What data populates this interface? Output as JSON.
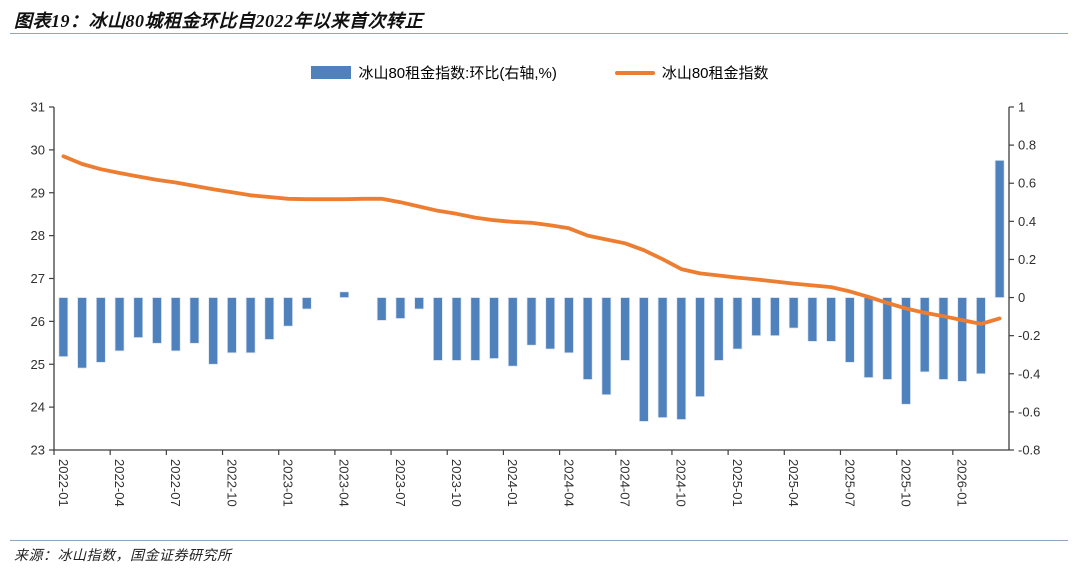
{
  "header": {
    "title": "图表19：冰山80城租金环比自2022年以来首次转正"
  },
  "legend": {
    "items": [
      {
        "label": "冰山80租金指数:环比(右轴,%)",
        "marker": "bar-swatch"
      },
      {
        "label": "冰山80租金指数",
        "marker": "line-swatch"
      }
    ]
  },
  "footer": {
    "source": "来源：冰山指数，国金证券研究所"
  },
  "colors": {
    "bar": "#4f81bd",
    "line": "#ed7d31",
    "axis": "#3f3f3f",
    "tick_text": "#303030",
    "divider": "#8fa8c2"
  },
  "chart_data": {
    "type": "bar+line combo",
    "x": [
      "2022-01",
      "2022-02",
      "2022-03",
      "2022-04",
      "2022-05",
      "2022-06",
      "2022-07",
      "2022-08",
      "2022-09",
      "2022-10",
      "2022-11",
      "2022-12",
      "2023-01",
      "2023-02",
      "2023-03",
      "2023-04",
      "2023-05",
      "2023-06",
      "2023-07",
      "2023-08",
      "2023-09",
      "2023-10",
      "2023-11",
      "2023-12",
      "2024-01",
      "2024-02",
      "2024-03",
      "2024-04",
      "2024-05",
      "2024-06",
      "2024-07",
      "2024-08",
      "2024-09",
      "2024-10",
      "2024-11",
      "2024-12",
      "2025-01",
      "2025-02",
      "2025-03",
      "2025-04",
      "2025-05",
      "2025-06",
      "2025-07",
      "2025-08",
      "2025-09",
      "2025-10",
      "2025-11",
      "2025-12",
      "2026-01",
      "2026-02",
      "2026-03"
    ],
    "x_tick_labels": [
      "2022-01",
      "2022-04",
      "2022-07",
      "2022-10",
      "2023-01",
      "2023-04",
      "2023-07",
      "2023-10",
      "2024-01",
      "2024-04",
      "2024-07",
      "2024-10",
      "2025-01",
      "2025-04",
      "2025-07",
      "2025-10",
      "2026-01"
    ],
    "x_tick_every_n_months": 3,
    "series": [
      {
        "name": "冰山80租金指数:环比(右轴,%)",
        "type": "bar",
        "axis": "right",
        "values": [
          -0.31,
          -0.37,
          -0.34,
          -0.28,
          -0.21,
          -0.24,
          -0.28,
          -0.24,
          -0.35,
          -0.29,
          -0.29,
          -0.22,
          -0.15,
          -0.06,
          0.0,
          0.03,
          0.0,
          -0.12,
          -0.11,
          -0.06,
          -0.33,
          -0.33,
          -0.33,
          -0.32,
          -0.36,
          -0.25,
          -0.27,
          -0.29,
          -0.43,
          -0.51,
          -0.33,
          -0.65,
          -0.63,
          -0.64,
          -0.52,
          -0.33,
          -0.27,
          -0.2,
          -0.2,
          -0.16,
          -0.23,
          -0.23,
          -0.34,
          -0.42,
          -0.43,
          -0.56,
          -0.39,
          -0.43,
          -0.44,
          -0.4,
          0.72
        ]
      },
      {
        "name": "冰山80租金指数",
        "type": "line",
        "axis": "left",
        "values": [
          29.85,
          29.67,
          29.55,
          29.46,
          29.38,
          29.3,
          29.24,
          29.16,
          29.08,
          29.01,
          28.94,
          28.9,
          28.86,
          28.85,
          28.85,
          28.85,
          28.86,
          28.86,
          28.78,
          28.68,
          28.58,
          28.51,
          28.42,
          28.36,
          28.32,
          28.3,
          28.24,
          28.17,
          28.0,
          27.91,
          27.82,
          27.66,
          27.45,
          27.22,
          27.12,
          27.07,
          27.02,
          26.98,
          26.93,
          26.88,
          26.84,
          26.8,
          26.7,
          26.57,
          26.43,
          26.3,
          26.2,
          26.12,
          26.03,
          25.94,
          26.07
        ]
      }
    ],
    "left_axis": {
      "min": 23,
      "max": 31,
      "tick_labels": [
        "23",
        "24",
        "25",
        "26",
        "27",
        "28",
        "29",
        "30",
        "31"
      ]
    },
    "right_axis": {
      "min": -0.8,
      "max": 1,
      "tick_labels": [
        "-0.8",
        "-0.6",
        "-0.4",
        "-0.2",
        "0",
        "0.2",
        "0.4",
        "0.6",
        "0.8",
        "1"
      ]
    },
    "grid": false,
    "legend_position": "top-center"
  }
}
